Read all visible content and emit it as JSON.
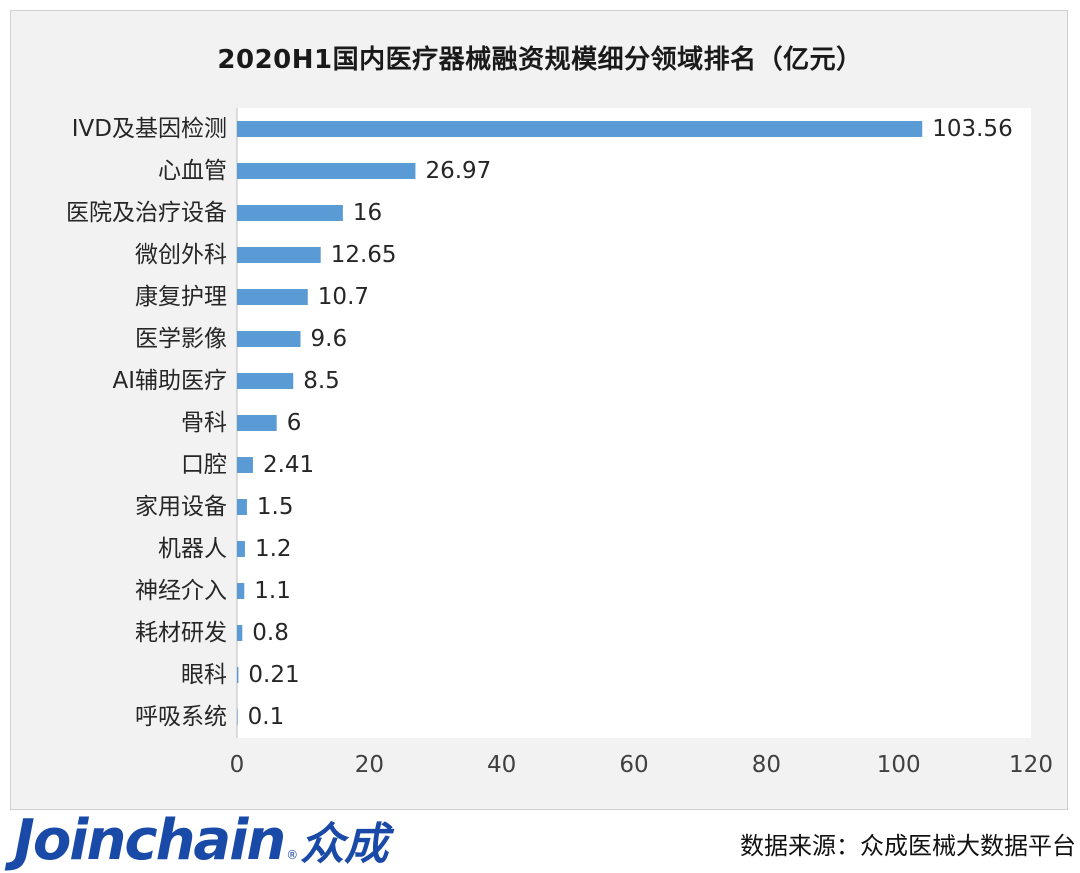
{
  "chart_data": {
    "type": "bar",
    "orientation": "horizontal",
    "title": "2020H1国内医疗器械融资规模细分领域排名（亿元）",
    "categories": [
      "IVD及基因检测",
      "心血管",
      "医院及治疗设备",
      "微创外科",
      "康复护理",
      "医学影像",
      "AI辅助医疗",
      "骨科",
      "口腔",
      "家用设备",
      "机器人",
      "神经介入",
      "耗材研发",
      "眼科",
      "呼吸系统"
    ],
    "values": [
      103.56,
      26.97,
      16,
      12.65,
      10.7,
      9.6,
      8.5,
      6,
      2.41,
      1.5,
      1.2,
      1.1,
      0.8,
      0.21,
      0.1
    ],
    "value_labels": [
      "103.56",
      "26.97",
      "16",
      "12.65",
      "10.7",
      "9.6",
      "8.5",
      "6",
      "2.41",
      "1.5",
      "1.2",
      "1.1",
      "0.8",
      "0.21",
      "0.1"
    ],
    "xlim": [
      0,
      120
    ],
    "xticks": [
      "0",
      "20",
      "40",
      "60",
      "80",
      "100",
      "120"
    ],
    "xlabel": "",
    "ylabel": "",
    "grid": false,
    "legend": "none",
    "bar_color": "#5b9bd5"
  },
  "footer": {
    "logo_text": "Joinchain",
    "logo_reg": "®",
    "logo_cn": "众成",
    "source": "数据来源：众成医械大数据平台"
  }
}
